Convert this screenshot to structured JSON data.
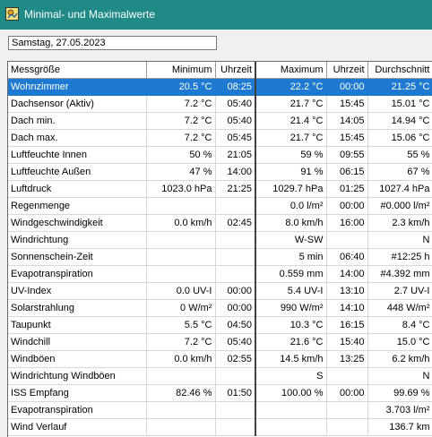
{
  "window": {
    "title": "Minimal- und Maximalwerte"
  },
  "date_field": {
    "value": "Samstag, 27.05.2023"
  },
  "table": {
    "headers": [
      "Messgröße",
      "Minimum",
      "Uhrzeit",
      "Maximum",
      "Uhrzeit",
      "Durchschnitt"
    ],
    "rows": [
      [
        "Wohnzimmer",
        "20.5 °C",
        "08:25",
        "22.2 °C",
        "00:00",
        "21.25 °C"
      ],
      [
        "Dachsensor (Aktiv)",
        "7.2 °C",
        "05:40",
        "21.7 °C",
        "15:45",
        "15.01 °C"
      ],
      [
        "Dach min.",
        "7.2 °C",
        "05:40",
        "21.4 °C",
        "14:05",
        "14.94 °C"
      ],
      [
        "Dach max.",
        "7.2 °C",
        "05:45",
        "21.7 °C",
        "15:45",
        "15.06 °C"
      ],
      [
        "Luftfeuchte Innen",
        "50 %",
        "21:05",
        "59 %",
        "09:55",
        "55 %"
      ],
      [
        "Luftfeuchte Außen",
        "47 %",
        "14:00",
        "91 %",
        "06:15",
        "67 %"
      ],
      [
        "Luftdruck",
        "1023.0 hPa",
        "21:25",
        "1029.7 hPa",
        "01:25",
        "1027.4 hPa"
      ],
      [
        "Regenmenge",
        "",
        "",
        "0.0 l/m²",
        "00:00",
        "#0.000 l/m²"
      ],
      [
        "Windgeschwindigkeit",
        "0.0 km/h",
        "02:45",
        "8.0 km/h",
        "16:00",
        "2.3 km/h"
      ],
      [
        "Windrichtung",
        "",
        "",
        "W-SW",
        "",
        "N"
      ],
      [
        "Sonnenschein-Zeit",
        "",
        "",
        "5 min",
        "06:40",
        "#12:25 h"
      ],
      [
        "Evapotranspiration",
        "",
        "",
        "0.559 mm",
        "14:00",
        "#4.392 mm"
      ],
      [
        "UV-Index",
        "0.0 UV-I",
        "00:00",
        "5.4 UV-I",
        "13:10",
        "2.7 UV-I"
      ],
      [
        "Solarstrahlung",
        "0 W/m²",
        "00:00",
        "990 W/m²",
        "14:10",
        "448 W/m²"
      ],
      [
        "Taupunkt",
        "5.5 °C",
        "04:50",
        "10.3 °C",
        "16:15",
        "8.4 °C"
      ],
      [
        "Windchill",
        "7.2 °C",
        "05:40",
        "21.6 °C",
        "15:40",
        "15.0 °C"
      ],
      [
        "Windböen",
        "0.0 km/h",
        "02:55",
        "14.5 km/h",
        "13:25",
        "6.2 km/h"
      ],
      [
        "Windrichtung Windböen",
        "",
        "",
        "S",
        "",
        "N"
      ],
      [
        "ISS Empfang",
        "82.46 %",
        "01:50",
        "100.00 %",
        "00:00",
        "99.69 %"
      ],
      [
        "Evapotranspiration",
        "",
        "",
        "",
        "",
        "3.703 l/m²"
      ],
      [
        "Wind Verlauf",
        "",
        "",
        "",
        "",
        "136.7 km"
      ]
    ],
    "selected_row": 0
  },
  "colors": {
    "titlebar": "#1f8a86",
    "selection": "#1e7ad0"
  },
  "icons": {
    "app": "weather-app-icon"
  }
}
